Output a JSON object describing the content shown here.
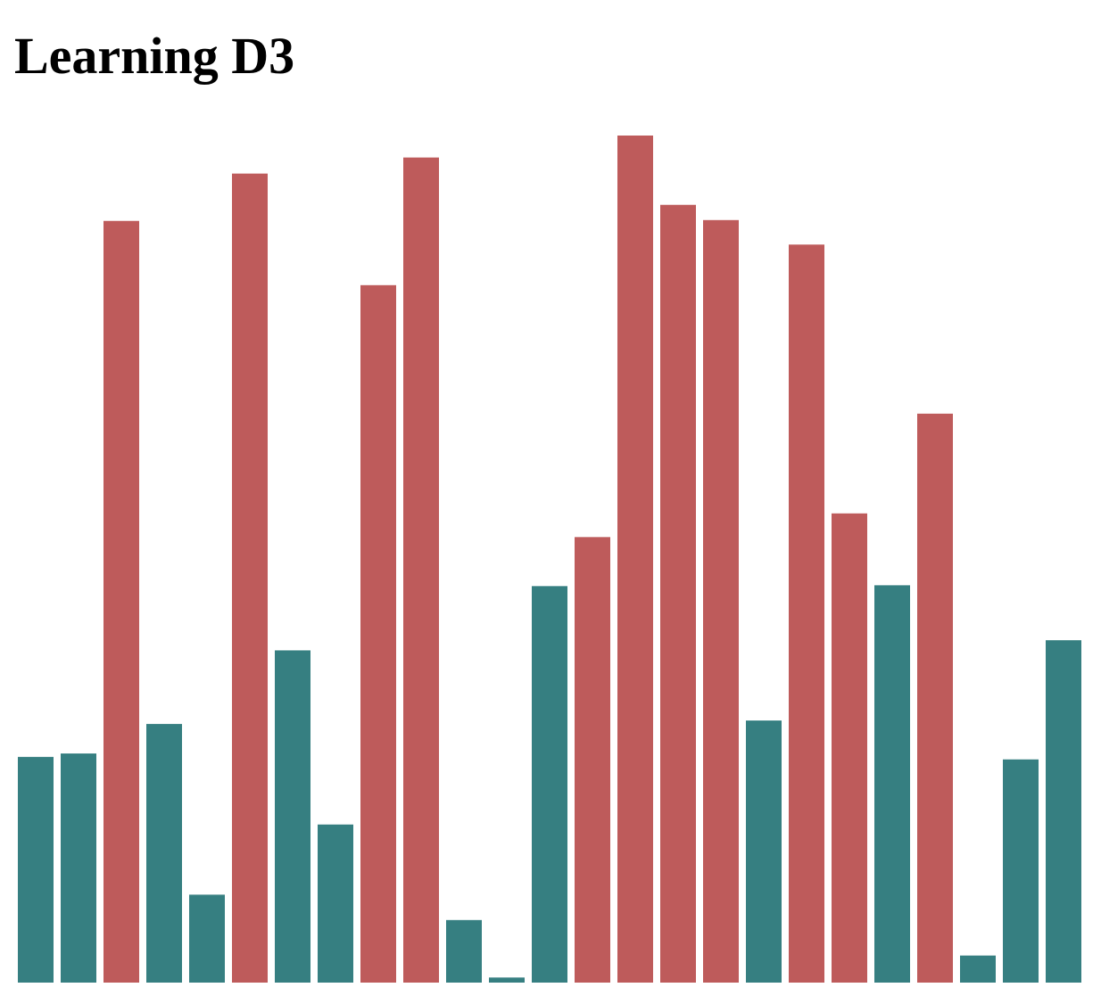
{
  "page": {
    "title": "Learning D3"
  },
  "chart_data": {
    "type": "bar",
    "title": "",
    "xlabel": "",
    "ylabel": "",
    "threshold": 50,
    "colors": {
      "above_threshold": "#BE5B5B",
      "below_threshold": "#367F81"
    },
    "values": [
      26.7,
      27.1,
      90.1,
      30.6,
      10.4,
      95.7,
      39.3,
      18.7,
      82.5,
      97.6,
      7.4,
      0.6,
      46.9,
      52.7,
      100.2,
      92.0,
      90.2,
      31.0,
      87.3,
      55.5,
      47.0,
      67.3,
      3.2,
      26.4,
      40.5
    ],
    "ylim": [
      0,
      100.2
    ],
    "axes_shown": false,
    "grid": false,
    "legend": "none"
  }
}
